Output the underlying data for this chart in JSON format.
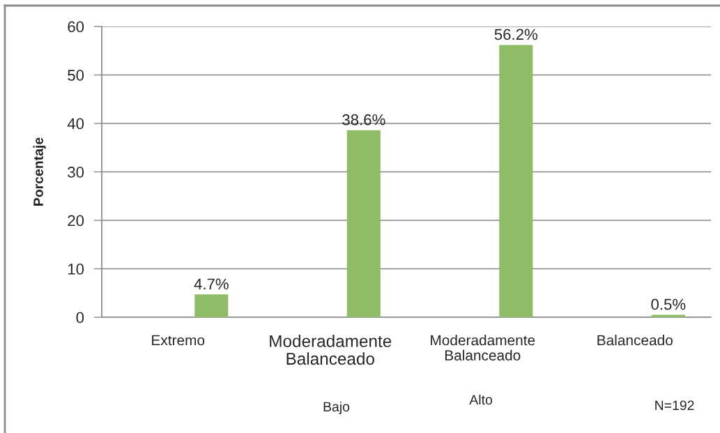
{
  "chart_data": {
    "type": "bar",
    "ylabel": "Porcentaje",
    "categories": [
      "Extremo",
      "Moderadamente\nBalanceado",
      "Moderadamente\nBalanceado",
      "Balanceado"
    ],
    "values": [
      4.7,
      38.6,
      56.2,
      0.5
    ],
    "value_labels": [
      "4.7%",
      "38.6%",
      "56.2%",
      "0.5%"
    ],
    "color": "#8fbc67",
    "ylim": [
      0,
      60
    ],
    "yticks": [
      0,
      10,
      20,
      30,
      40,
      50,
      60
    ],
    "grid": "y",
    "annotations": [
      "Bajo",
      "Alto",
      "N=192"
    ]
  }
}
